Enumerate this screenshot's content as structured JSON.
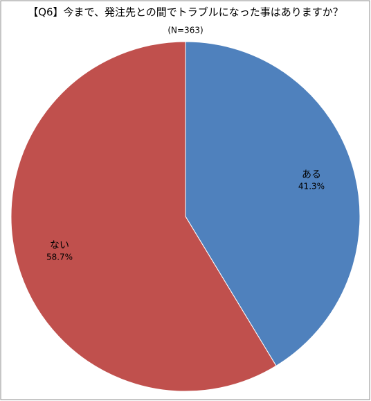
{
  "chart_data": {
    "type": "pie",
    "title": "【Q6】今まで、発注先との間でトラブルになった事はありますか？",
    "subtitle": "(N=363)",
    "categories": [
      "ある",
      "ない"
    ],
    "values": [
      41.3,
      58.7
    ],
    "value_labels": [
      "41.3%",
      "58.7%"
    ],
    "colors": [
      "#4f81bd",
      "#c0504d"
    ]
  }
}
